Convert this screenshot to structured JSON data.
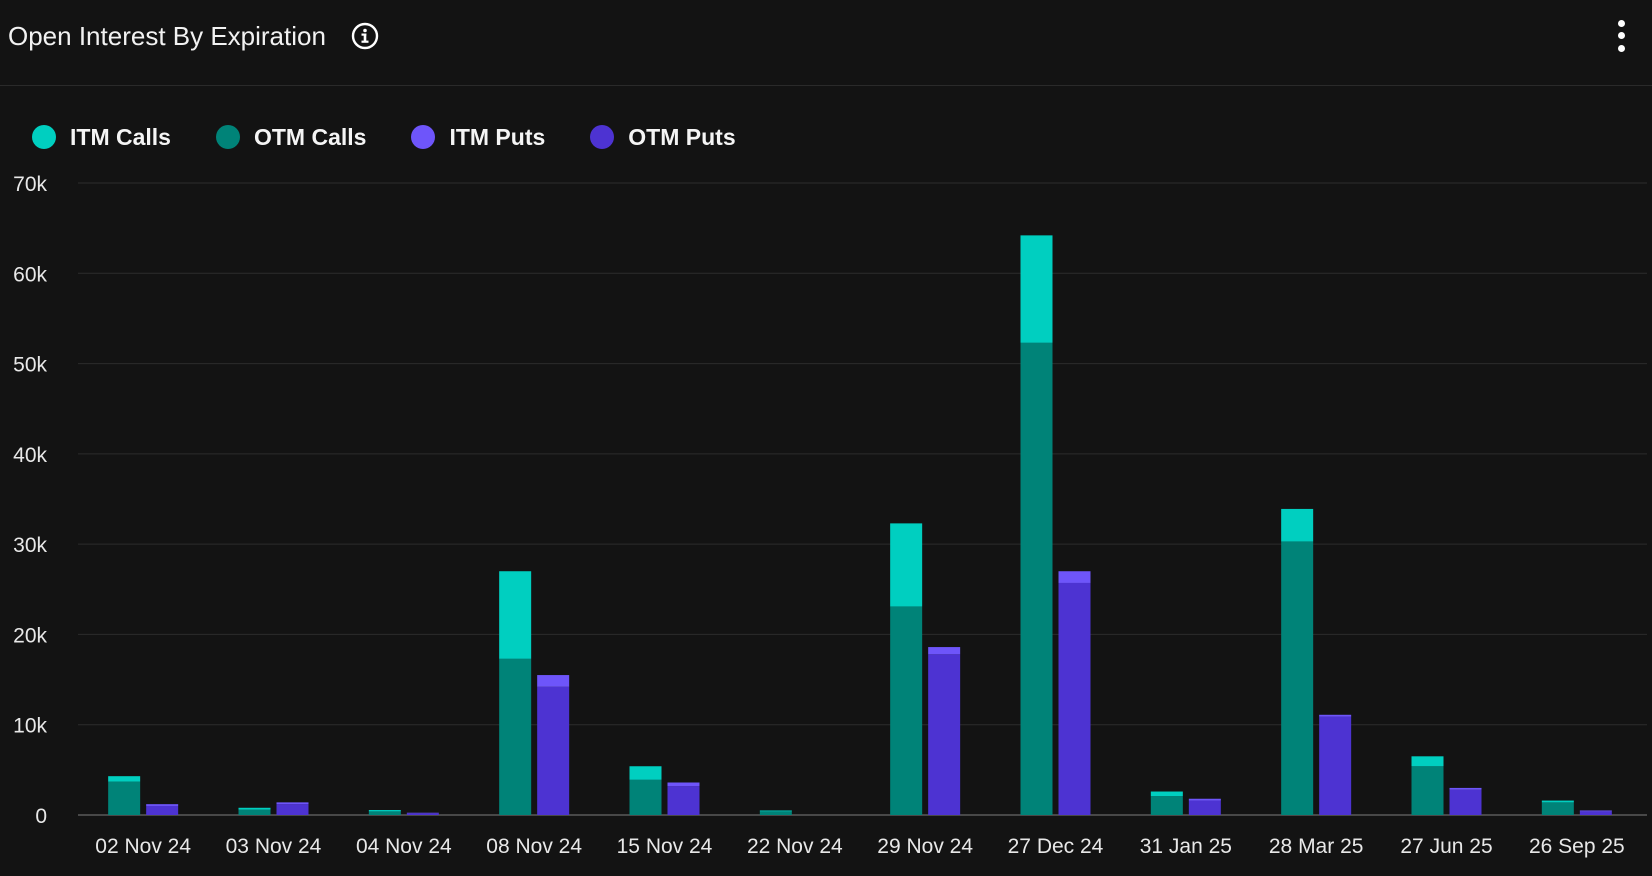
{
  "header": {
    "title": "Open Interest By Expiration",
    "info_icon": "info-icon",
    "menu_icon": "more-vertical-icon"
  },
  "colors": {
    "background": "#131313",
    "itm_calls": "#00cfc0",
    "otm_calls": "#008378",
    "itm_puts": "#6e55fa",
    "otm_puts": "#4d33d2",
    "grid": "#2c2c2c"
  },
  "legend": [
    {
      "label": "ITM Calls",
      "color": "#00cfc0"
    },
    {
      "label": "OTM Calls",
      "color": "#008378"
    },
    {
      "label": "ITM Puts",
      "color": "#6e55fa"
    },
    {
      "label": "OTM Puts",
      "color": "#4d33d2"
    }
  ],
  "chart_data": {
    "type": "bar",
    "stacked": true,
    "grouped": true,
    "title": "Open Interest By Expiration",
    "xlabel": "",
    "ylabel": "",
    "ylim": [
      0,
      70000
    ],
    "yticks": [
      0,
      10000,
      20000,
      30000,
      40000,
      50000,
      60000,
      70000
    ],
    "ytick_labels": [
      "0",
      "10k",
      "20k",
      "30k",
      "40k",
      "50k",
      "60k",
      "70k"
    ],
    "grid": true,
    "legend_position": "top-left",
    "categories": [
      "02 Nov 24",
      "03 Nov 24",
      "04 Nov 24",
      "08 Nov 24",
      "15 Nov 24",
      "22 Nov 24",
      "29 Nov 24",
      "27 Dec 24",
      "31 Jan 25",
      "28 Mar 25",
      "27 Jun 25",
      "26 Sep 25"
    ],
    "series": [
      {
        "name": "OTM Calls",
        "stack": "calls",
        "values": [
          3700,
          600,
          400,
          17300,
          3900,
          400,
          23100,
          52300,
          2100,
          30300,
          5400,
          1400
        ]
      },
      {
        "name": "ITM Calls",
        "stack": "calls",
        "values": [
          600,
          200,
          150,
          9700,
          1500,
          100,
          9200,
          11900,
          500,
          3600,
          1100,
          200
        ]
      },
      {
        "name": "OTM Puts",
        "stack": "puts",
        "values": [
          1000,
          1200,
          200,
          14200,
          3200,
          0,
          17800,
          25700,
          1600,
          10900,
          2800,
          400
        ]
      },
      {
        "name": "ITM Puts",
        "stack": "puts",
        "values": [
          200,
          200,
          50,
          1300,
          400,
          0,
          800,
          1300,
          200,
          200,
          200,
          100
        ]
      }
    ]
  }
}
